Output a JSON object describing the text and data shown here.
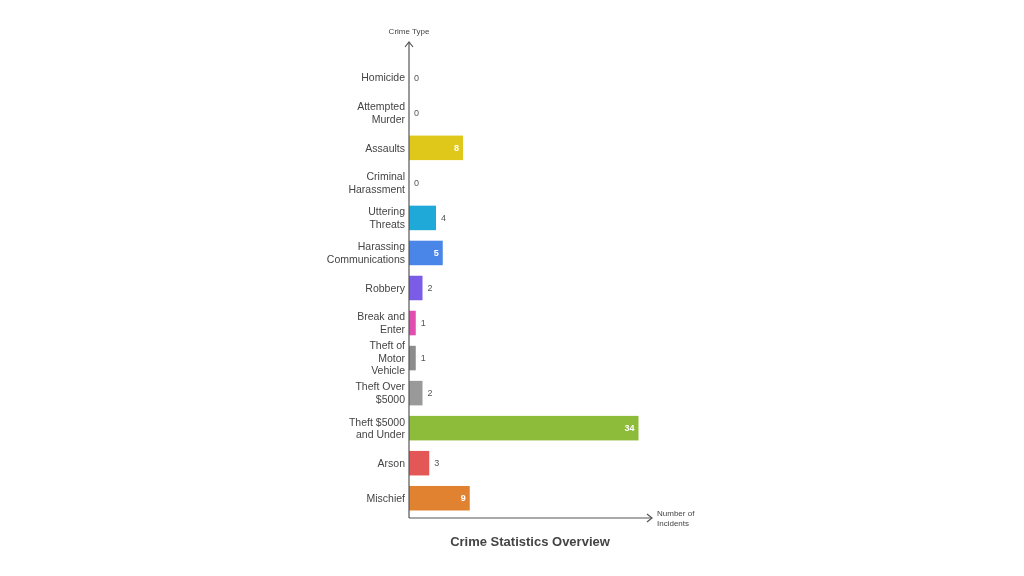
{
  "chart_data": {
    "type": "bar",
    "orientation": "horizontal",
    "title": "Crime Statistics Overview",
    "xlabel": "Number of Incidents",
    "ylabel": "Crime Type",
    "categories": [
      "Homicide",
      "Attempted Murder",
      "Assaults",
      "Criminal Harassment",
      "Uttering Threats",
      "Harassing Communications",
      "Robbery",
      "Break and Enter",
      "Theft of Motor Vehicle",
      "Theft Over $5000",
      "Theft $5000 and Under",
      "Arson",
      "Mischief"
    ],
    "values": [
      0,
      0,
      8,
      0,
      4,
      5,
      2,
      1,
      1,
      2,
      34,
      3,
      9
    ],
    "colors": [
      "#999999",
      "#999999",
      "#e0c81a",
      "#999999",
      "#1ea9d9",
      "#4a86e8",
      "#7b5ce6",
      "#e04fb0",
      "#8c8c8c",
      "#999999",
      "#8dbb3a",
      "#e45757",
      "#e0822f"
    ],
    "xlim": [
      0,
      36
    ],
    "data_labels": true
  }
}
